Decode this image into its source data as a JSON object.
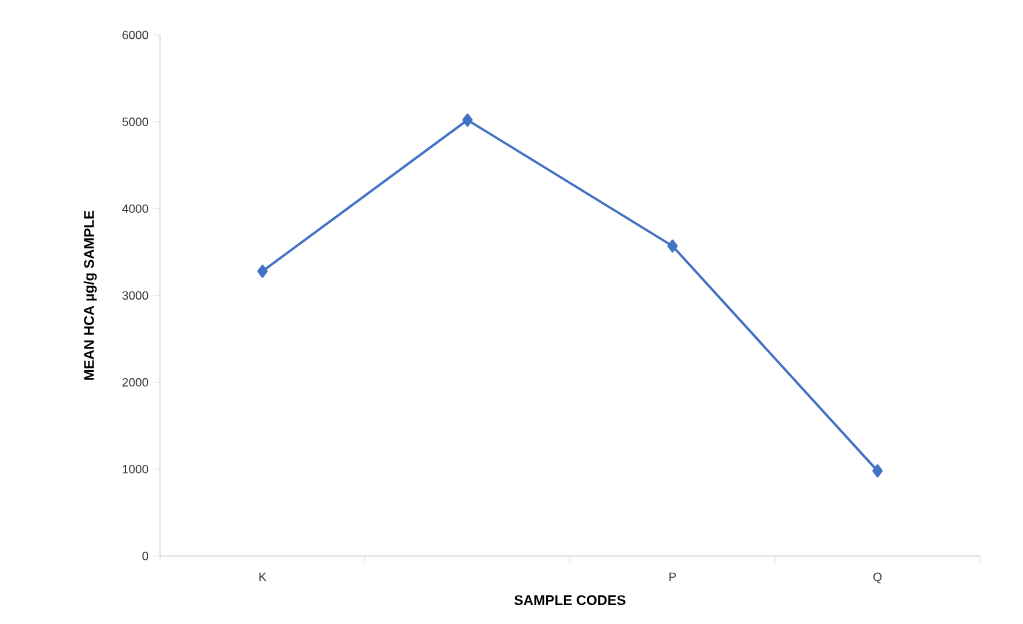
{
  "chart_data": {
    "type": "line",
    "xlabel": "SAMPLE CODES",
    "ylabel": "MEAN HCA µg/g SAMPLE",
    "categories": [
      "K",
      null,
      "P",
      "Q"
    ],
    "series": [
      {
        "color": "#4472c4",
        "values": [
          3280,
          5020,
          3570,
          980
        ]
      }
    ],
    "ylim": [
      0,
      6000
    ],
    "yticks": [
      0,
      1000,
      2000,
      3000,
      4000,
      5000,
      6000
    ],
    "grid": false,
    "marker": "diamond",
    "line_style": "solid"
  }
}
